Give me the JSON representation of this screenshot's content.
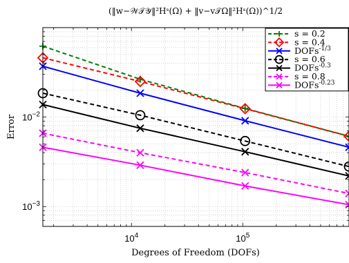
{
  "chart_data": {
    "type": "line",
    "title": "(‖w−𝒲𝒯𝒴‖²Hˢ(Ω) + ‖v−v𝒯Ω‖²Hˢ(Ω))^1/2",
    "xlabel": "Degrees of Freedom (DOFs)",
    "ylabel": "Error",
    "xscale": "log",
    "yscale": "log",
    "xlim": [
      1600,
      900000
    ],
    "ylim": [
      0.0006,
      0.1
    ],
    "x_ticks": [
      {
        "value": 10000,
        "base": "10",
        "exp": "4"
      },
      {
        "value": 100000,
        "base": "10",
        "exp": "5"
      }
    ],
    "y_ticks": [
      {
        "value": 0.01,
        "base": "10",
        "exp": "−2"
      },
      {
        "value": 0.001,
        "base": "10",
        "exp": "−3"
      }
    ],
    "grid": true,
    "legend_position": "top-right",
    "series": [
      {
        "name": "s = 0.2",
        "color": "#008000",
        "dash": "dashed",
        "marker": "plus",
        "x": [
          1600,
          12000,
          105000,
          900000
        ],
        "y": [
          0.062,
          0.0265,
          0.0125,
          0.0061
        ]
      },
      {
        "name": "s = 0.4",
        "color": "#ff0000",
        "dash": "dashed",
        "marker": "diamond",
        "x": [
          1600,
          12000,
          105000,
          900000
        ],
        "y": [
          0.046,
          0.025,
          0.0124,
          0.0061
        ]
      },
      {
        "name": "DOFs^-1/3",
        "color": "#0000ff",
        "dash": "solid",
        "marker": "x",
        "x": [
          1600,
          12000,
          105000,
          900000
        ],
        "y": [
          0.037,
          0.0185,
          0.0091,
          0.0046
        ]
      },
      {
        "name": "s = 0.6",
        "color": "#000000",
        "dash": "dashed",
        "marker": "circle",
        "x": [
          1600,
          12000,
          105000,
          900000
        ],
        "y": [
          0.0185,
          0.0105,
          0.0054,
          0.0028
        ]
      },
      {
        "name": "DOFs^-0.3",
        "color": "#000000",
        "dash": "solid",
        "marker": "x",
        "x": [
          1600,
          12000,
          105000,
          900000
        ],
        "y": [
          0.0138,
          0.0075,
          0.0041,
          0.0022
        ]
      },
      {
        "name": "s = 0.8",
        "color": "#ff00ff",
        "dash": "dashed",
        "marker": "x",
        "x": [
          1600,
          12000,
          105000,
          900000
        ],
        "y": [
          0.0066,
          0.004,
          0.0024,
          0.0014
        ]
      },
      {
        "name": "DOFs^-0.23",
        "color": "#ff00ff",
        "dash": "solid",
        "marker": "x",
        "x": [
          1600,
          12000,
          105000,
          900000
        ],
        "y": [
          0.0046,
          0.0029,
          0.0017,
          0.00105
        ]
      }
    ],
    "legend": [
      {
        "text": "s = 0.2",
        "base": "",
        "exp": ""
      },
      {
        "text": "s = 0.4",
        "base": "",
        "exp": ""
      },
      {
        "text": "",
        "base": "DOFs",
        "exp": "-1/3"
      },
      {
        "text": "s = 0.6",
        "base": "",
        "exp": ""
      },
      {
        "text": "",
        "base": "DOFs",
        "exp": "-0.3"
      },
      {
        "text": "s = 0.8",
        "base": "",
        "exp": ""
      },
      {
        "text": "",
        "base": "DOFs",
        "exp": "-0.23"
      }
    ]
  }
}
